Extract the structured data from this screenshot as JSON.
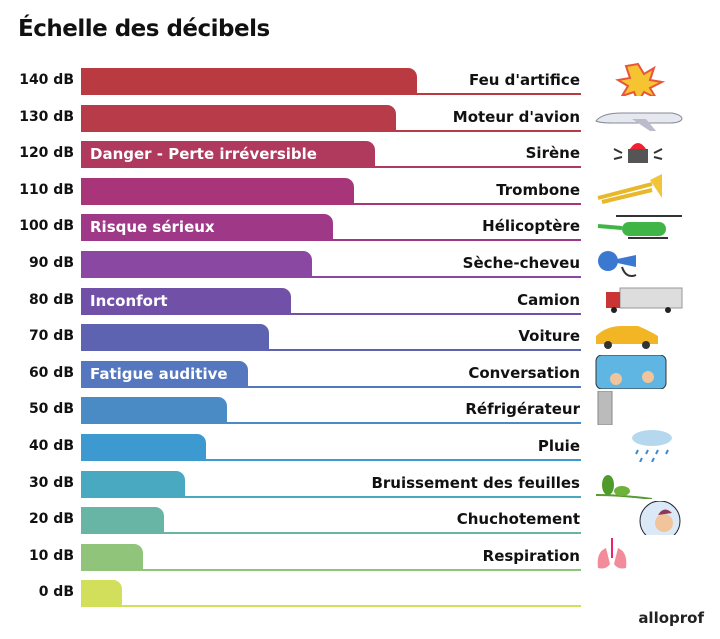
{
  "title": "Échelle des décibels",
  "logo": "alloprof",
  "chart_data": {
    "type": "bar",
    "orientation": "horizontal",
    "title": "Échelle des décibels",
    "unit": "dB",
    "categories": [
      "140 dB",
      "130 dB",
      "120 dB",
      "110 dB",
      "100 dB",
      "90 dB",
      "80 dB",
      "70 dB",
      "60 dB",
      "50 dB",
      "40 dB",
      "30 dB",
      "20 dB",
      "10 dB",
      "0 dB"
    ],
    "values": [
      140,
      130,
      120,
      110,
      100,
      90,
      80,
      70,
      60,
      50,
      40,
      30,
      20,
      10,
      0
    ],
    "sources": [
      "Feu d'artifice",
      "Moteur d'avion",
      "Sirène",
      "Trombone",
      "Hélicoptère",
      "Sèche-cheveu",
      "Camion",
      "Voiture",
      "Conversation",
      "Réfrigérateur",
      "Pluie",
      "Bruissement des feuilles",
      "Chuchotement",
      "Respiration",
      ""
    ],
    "zones": {
      "120": "Danger - Perte irréversible",
      "100": "Risque sérieux",
      "80": "Inconfort",
      "60": "Fatigue auditive"
    },
    "colors": [
      "#b93a40",
      "#b73b48",
      "#b0395e",
      "#a8357a",
      "#a03888",
      "#8a48a2",
      "#7150a8",
      "#5e63b1",
      "#5477bf",
      "#4a8bc6",
      "#3d9ad0",
      "#48a9c0",
      "#68b5a5",
      "#8fc47a",
      "#d2df5a"
    ],
    "icons": [
      "fireworks-icon",
      "airplane-icon",
      "siren-icon",
      "trombone-icon",
      "helicopter-icon",
      "hair-dryer-icon",
      "truck-icon",
      "car-icon",
      "conversation-icon",
      "refrigerator-icon",
      "rain-icon",
      "leaves-icon",
      "whisper-icon",
      "lungs-icon",
      ""
    ]
  }
}
